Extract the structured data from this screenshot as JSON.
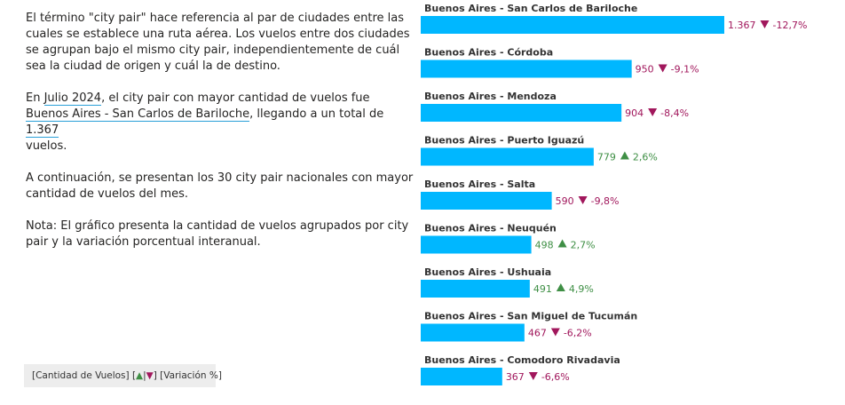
{
  "intro": {
    "p1": "El término \"city pair\" hace referencia al par de ciudades entre las cuales se establece una ruta aérea. Los vuelos entre dos ciudades se agrupan bajo el mismo city pair, independientemente de cuál sea la ciudad de origen y cuál la de destino.",
    "p2_prefix": "En ",
    "period": "Julio 2024",
    "p2_mid": ", el city pair con mayor cantidad de vuelos fue",
    "top_pair": "Buenos Aires - San Carlos de Bariloche",
    "p2_mid2": ", llegando a un total de ",
    "top_value": "1.367",
    "p2_suffix": "vuelos.",
    "p3": "A continuación, se presentan los 30 city pair nacionales con mayor cantidad de vuelos del mes.",
    "p4": "Nota: El gráfico presenta la cantidad de vuelos agrupados por city pair y la variación porcentual interanual."
  },
  "legend": {
    "part1": "[Cantidad de Vuelos] [",
    "up_glyph": "▲",
    "sep": "|",
    "down_glyph": "▼",
    "part2": "] [Variación %]"
  },
  "colors": {
    "bar": "#00b7ff",
    "up": "#3f8f45",
    "down": "#a1175c"
  },
  "chart_data": {
    "type": "bar",
    "orientation": "horizontal",
    "categories": [
      "Buenos Aires - San Carlos de Bariloche",
      "Buenos Aires - Córdoba",
      "Buenos Aires - Mendoza",
      "Buenos Aires - Puerto Iguazú",
      "Buenos Aires - Salta",
      "Buenos Aires - Neuquén",
      "Buenos Aires - Ushuaia",
      "Buenos Aires - San Miguel de Tucumán",
      "Buenos Aires - Comodoro Rivadavia"
    ],
    "values": [
      1367,
      950,
      904,
      779,
      590,
      498,
      491,
      467,
      367
    ],
    "value_labels": [
      "1.367",
      "950",
      "904",
      "779",
      "590",
      "498",
      "491",
      "467",
      "367"
    ],
    "variation_labels": [
      "-12,7%",
      "-9,1%",
      "-8,4%",
      "2,6%",
      "-9,8%",
      "2,7%",
      "4,9%",
      "-6,2%",
      "-6,6%"
    ],
    "variation": [
      -12.7,
      -9.1,
      -8.4,
      2.6,
      -9.8,
      2.7,
      4.9,
      -6.2,
      -6.6
    ],
    "xlim": [
      0,
      1367
    ]
  }
}
